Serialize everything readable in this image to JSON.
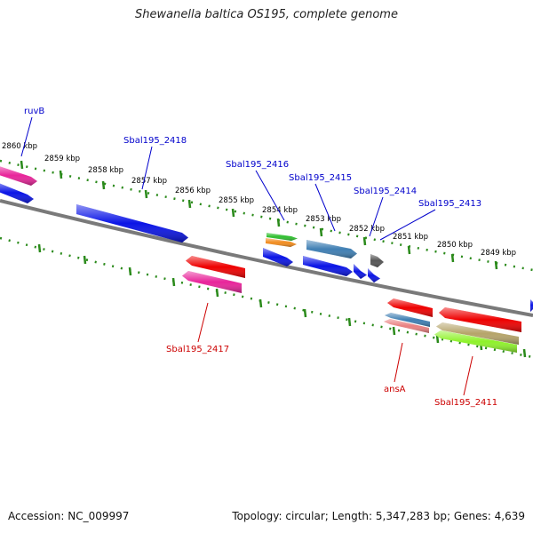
{
  "title": "Shewanella baltica OS195, complete genome",
  "footer": {
    "accession": "Accession: NC_009997",
    "topology": "Topology: circular; Length: 5,347,283 bp; Genes: 4,639"
  },
  "colors": {
    "backbone": "#7a7a7a",
    "ticks": "#2a8a1a",
    "kbp_label": "#000000",
    "forward_label": "#0000cc",
    "reverse_label": "#cc0000"
  },
  "kbp_labels": [
    "2860 kbp",
    "2859 kbp",
    "2858 kbp",
    "2857 kbp",
    "2856 kbp",
    "2855 kbp",
    "2854 kbp",
    "2853 kbp",
    "2852 kbp",
    "2851 kbp",
    "2850 kbp",
    "2849 kbp"
  ],
  "forward_gene_labels": [
    "ruvB",
    "Sbal195_2418",
    "Sbal195_2416",
    "Sbal195_2415",
    "Sbal195_2414",
    "Sbal195_2413"
  ],
  "reverse_gene_labels": [
    "Sbal195_2417",
    "ansA",
    "Sbal195_2411"
  ],
  "gene_colors": {
    "blue": "#0a14e6",
    "steelblue": "#3f7fb3",
    "red": "#ee0000",
    "pink": "#e8249a",
    "green": "#2fbf2f",
    "orange": "#f28c1e",
    "gray": "#555555",
    "salmon": "#e98080",
    "tan": "#b5a46a",
    "lime": "#8ef22a"
  }
}
